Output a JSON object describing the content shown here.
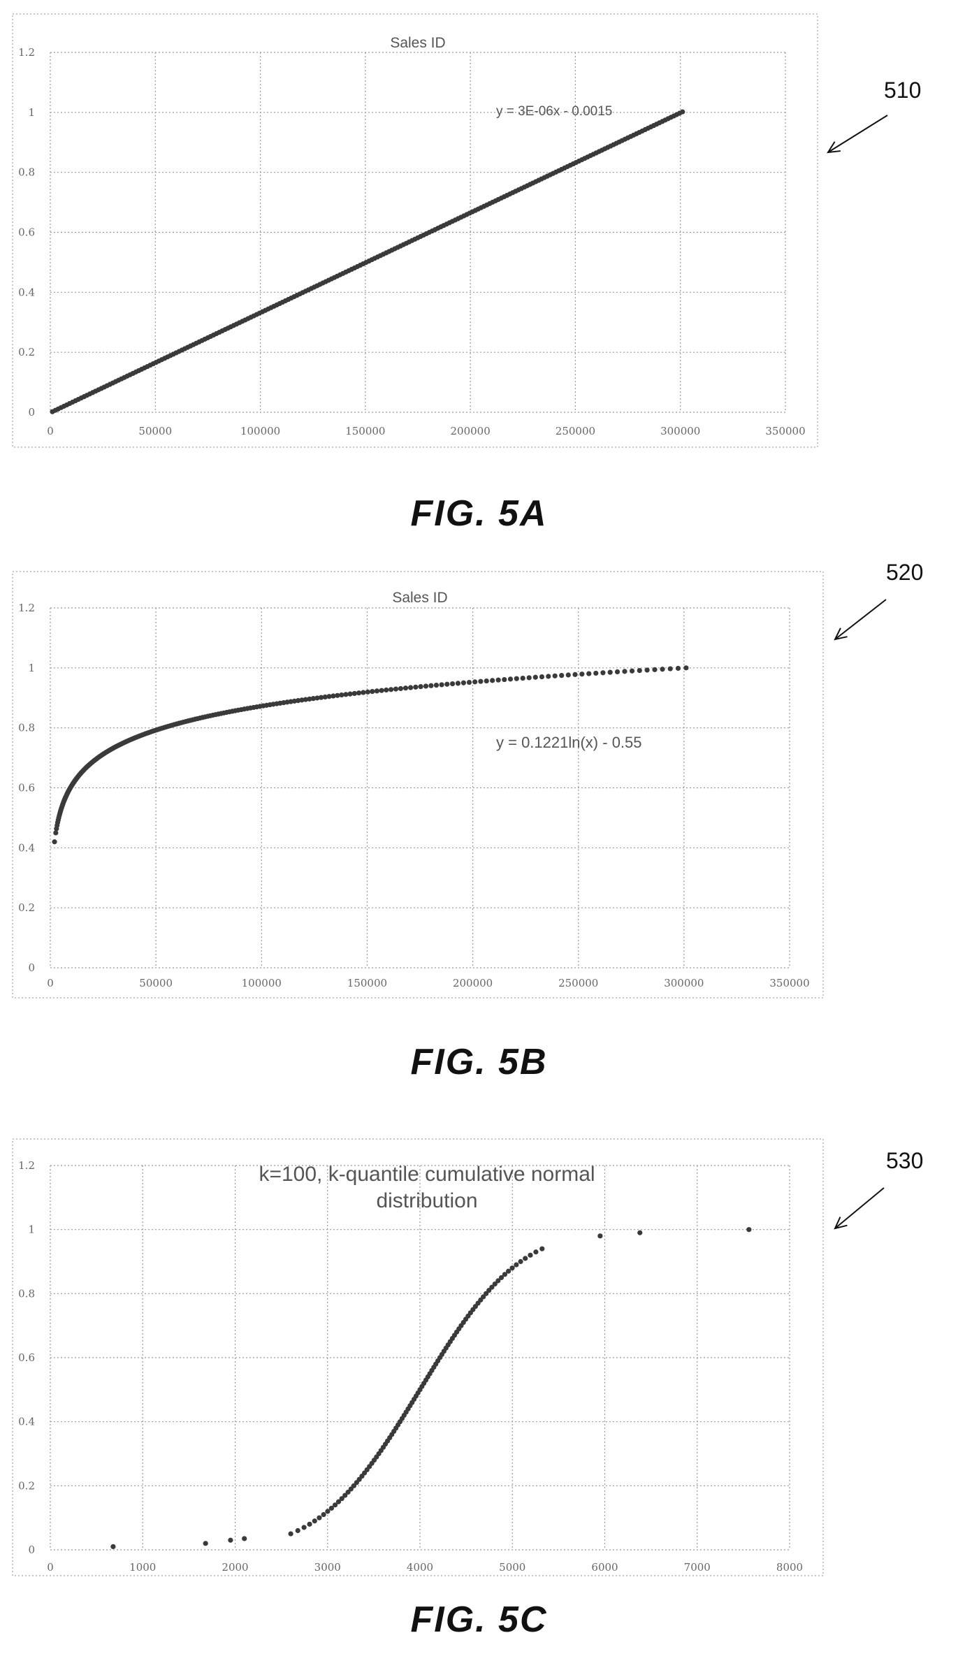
{
  "chart_data": [
    {
      "id": "510",
      "type": "scatter",
      "title": "Sales ID",
      "trendline_label": "y = 3E-06x - 0.0015",
      "reference_label": "510",
      "figure_label": "FIG. 5A",
      "xlim": [
        0,
        350000
      ],
      "ylim": [
        0,
        1.2
      ],
      "x_ticks": [
        "0",
        "50000",
        "100000",
        "150000",
        "200000",
        "250000",
        "300000",
        "350000"
      ],
      "y_ticks": [
        "0",
        "0.2",
        "0.4",
        "0.6",
        "0.8",
        "1",
        "1.2"
      ],
      "grid": true,
      "series": [
        {
          "color": "#3a3a3a",
          "x_range": [
            1000,
            301000
          ],
          "points": 220,
          "formula": "linear",
          "a": 3.3333e-06,
          "b": -0.0015
        }
      ]
    },
    {
      "id": "520",
      "type": "scatter",
      "title": "Sales ID",
      "trendline_label": "y = 0.1221ln(x) - 0.55",
      "reference_label": "520",
      "figure_label": "FIG. 5B",
      "xlim": [
        0,
        350000
      ],
      "ylim": [
        0,
        1.2
      ],
      "x_ticks": [
        "0",
        "50000",
        "100000",
        "150000",
        "200000",
        "250000",
        "300000",
        "350000"
      ],
      "y_ticks": [
        "0",
        "0.2",
        "0.4",
        "0.6",
        "0.8",
        "1",
        "1.2"
      ],
      "grid": true,
      "series": [
        {
          "color": "#3a3a3a",
          "x_range": [
            2000,
            301000
          ],
          "points": 220,
          "formula": "log-cdf",
          "start_y": 0.42,
          "end_y": 1.0
        }
      ]
    },
    {
      "id": "530",
      "type": "scatter",
      "title_lines": [
        "k=100, k-quantile cumulative normal",
        "distribution"
      ],
      "reference_label": "530",
      "figure_label": "FIG. 5C",
      "xlim": [
        0,
        8000
      ],
      "ylim": [
        0,
        1.2
      ],
      "x_ticks": [
        "0",
        "1000",
        "2000",
        "3000",
        "4000",
        "5000",
        "6000",
        "7000",
        "8000"
      ],
      "y_ticks": [
        "0",
        "0.2",
        "0.4",
        "0.6",
        "0.8",
        "1",
        "1.2"
      ],
      "grid": true,
      "series": [
        {
          "color": "#3a3a3a",
          "formula": "normal-cdf",
          "mean": 4000,
          "sd": 850,
          "quantiles": 100,
          "extra_points": [
            [
              680,
              0.01
            ],
            [
              1680,
              0.02
            ],
            [
              1950,
              0.03
            ],
            [
              2100,
              0.035
            ],
            [
              5950,
              0.98
            ],
            [
              6380,
              0.99
            ],
            [
              7560,
              1.0
            ]
          ]
        }
      ]
    }
  ]
}
